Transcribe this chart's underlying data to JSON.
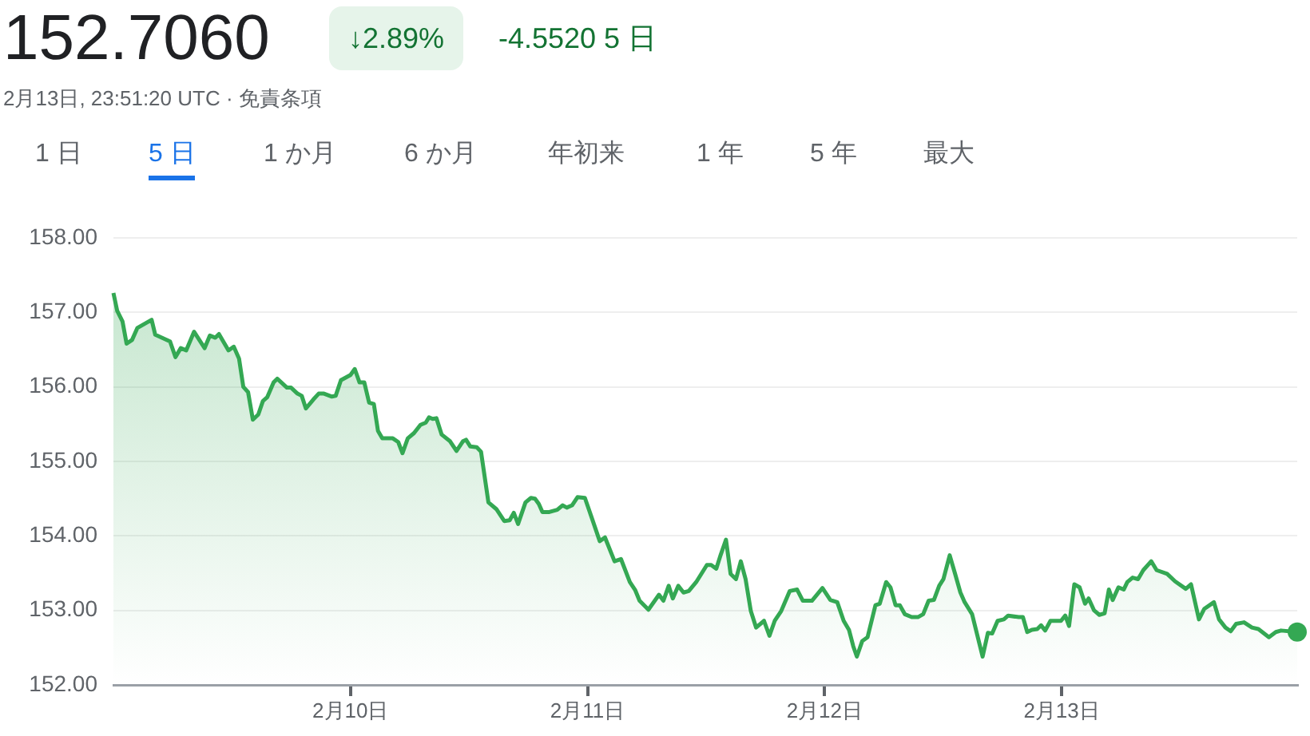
{
  "chart_data": {
    "type": "area",
    "title": "152.7060",
    "subtitle": "2月13日, 23:51:20 UTC · 免責条項",
    "annotations": [
      "↓2.89%",
      "-4.5520 5 日",
      "1 日",
      "5 日",
      "1 か月",
      "6 か月",
      "年初来",
      "1 年",
      "5 年",
      "最大"
    ],
    "series": [
      {
        "color": "#34a853",
        "x": [
          "--02-09T00:00",
          "--02-09T00:23",
          "--02-09T00:55",
          "--02-09T01:20",
          "--02-09T01:53",
          "--02-09T02:25",
          "--02-09T03:52",
          "--02-09T04:14",
          "--02-09T05:44",
          "--02-09T06:17",
          "--02-09T06:49",
          "--02-09T07:22",
          "--02-09T08:10",
          "--02-09T09:14",
          "--02-09T09:46",
          "--02-09T10:19",
          "--02-09T10:41",
          "--02-09T11:39",
          "--02-09T12:11",
          "--02-09T12:43",
          "--02-09T13:09",
          "--02-09T13:38",
          "--02-09T14:07",
          "--02-09T14:40",
          "--02-09T15:08",
          "--02-09T15:34",
          "--02-09T16:13",
          "--02-09T16:35",
          "--02-09T17:34",
          "--02-09T17:59",
          "--02-09T18:38",
          "--02-09T19:04",
          "--02-09T19:29",
          "--02-09T20:14",
          "--02-09T20:47",
          "--02-09T21:19",
          "--02-09T22:07",
          "--02-09T22:30",
          "--02-09T23:02",
          "--02-10T00:00",
          "--02-10T00:26",
          "--02-10T00:55",
          "--02-10T01:24",
          "--02-10T01:53",
          "--02-10T02:22",
          "--02-10T02:47",
          "--02-10T03:13",
          "--02-10T04:17",
          "--02-10T04:50",
          "--02-10T05:16",
          "--02-10T05:48",
          "--02-10T06:26",
          "--02-10T07:05",
          "--02-10T07:37",
          "--02-10T07:57",
          "--02-10T08:19",
          "--02-10T08:42",
          "--02-10T09:14",
          "--02-10T10:05",
          "--02-10T10:44",
          "--02-10T11:23",
          "--02-10T11:42",
          "--02-10T12:08",
          "--02-10T12:47",
          "--02-10T13:13",
          "--02-10T13:58",
          "--02-10T14:46",
          "--02-10T15:34",
          "--02-10T16:07",
          "--02-10T16:32",
          "--02-10T16:58",
          "--02-10T17:43",
          "--02-10T18:16",
          "--02-10T18:41",
          "--02-10T19:04",
          "--02-10T19:26",
          "--02-10T20:08",
          "--02-10T20:56",
          "--02-10T21:28",
          "--02-10T21:54",
          "--02-10T22:26",
          "--02-10T22:59",
          "--02-10T23:44",
          "--02-11T00:26",
          "--02-11T01:14",
          "--02-11T01:46",
          "--02-11T02:44",
          "--02-11T03:23",
          "--02-11T04:17",
          "--02-11T04:50",
          "--02-11T05:16",
          "--02-11T06:10",
          "--02-11T07:14",
          "--02-11T07:41",
          "--02-11T08:13",
          "--02-11T08:38",
          "--02-11T09:11",
          "--02-11T09:43",
          "--02-11T10:15",
          "--02-11T11:00",
          "--02-11T12:05",
          "--02-11T12:31",
          "--02-11T13:02",
          "--02-11T13:28",
          "--02-11T14:01",
          "--02-11T14:29",
          "--02-11T15:02",
          "--02-11T15:31",
          "--02-11T16:00",
          "--02-11T16:32",
          "--02-11T17:04",
          "--02-11T17:52",
          "--02-11T18:25",
          "--02-11T18:57",
          "--02-11T19:36",
          "--02-11T20:28",
          "--02-11T21:13",
          "--02-11T21:48",
          "--02-11T22:43",
          "--02-11T23:47",
          "--02-12T00:35",
          "--02-12T01:17",
          "--02-12T01:56",
          "--02-12T02:28",
          "--02-12T02:54",
          "--02-12T03:16",
          "--02-12T03:49",
          "--02-12T04:21",
          "--02-12T05:09",
          "--02-12T05:35",
          "--02-12T06:14",
          "--02-12T06:40",
          "--02-12T07:11",
          "--02-12T07:37",
          "--02-12T08:07",
          "--02-12T08:49",
          "--02-12T09:27",
          "--02-12T09:59",
          "--02-12T10:32",
          "--02-12T11:04",
          "--02-12T11:36",
          "--02-12T12:02",
          "--02-12T12:40",
          "--02-12T13:13",
          "--02-12T13:45",
          "--02-12T14:11",
          "--02-12T14:56",
          "--02-12T16:00",
          "--02-12T16:32",
          "--02-12T16:58",
          "--02-12T17:31",
          "--02-12T18:09",
          "--02-12T18:35",
          "--02-12T19:39",
          "--02-12T20:05",
          "--02-12T20:31",
          "--02-12T20:59",
          "--02-12T21:32",
          "--02-12T21:55",
          "--02-12T22:20",
          "--02-12T22:52",
          "--02-12T23:56",
          "--02-13T00:22",
          "--02-13T00:45",
          "--02-13T01:17",
          "--02-13T01:49",
          "--02-13T02:22",
          "--02-13T02:44",
          "--02-13T03:17",
          "--02-13T03:49",
          "--02-13T04:21",
          "--02-13T04:47",
          "--02-13T05:10",
          "--02-13T05:45",
          "--02-13T06:17",
          "--02-13T06:39",
          "--02-13T07:11",
          "--02-13T07:44",
          "--02-13T08:16",
          "--02-13T09:04",
          "--02-13T09:37",
          "--02-13T10:41",
          "--02-13T11:29",
          "--02-13T12:34",
          "--02-13T13:06",
          "--02-13T13:54",
          "--02-13T14:26",
          "--02-13T15:25",
          "--02-13T15:56",
          "--02-13T16:35",
          "--02-13T17:07",
          "--02-13T17:40",
          "--02-13T18:28",
          "--02-13T19:16",
          "--02-13T19:55",
          "--02-13T20:59",
          "--02-13T21:41",
          "--02-13T22:13",
          "--02-13T23:51"
        ],
        "values": [
          157.26,
          157.02,
          156.88,
          156.58,
          156.63,
          156.79,
          156.9,
          156.7,
          156.61,
          156.4,
          156.52,
          156.49,
          156.74,
          156.52,
          156.69,
          156.66,
          156.71,
          156.49,
          156.54,
          156.38,
          156,
          155.93,
          155.56,
          155.63,
          155.81,
          155.86,
          156.06,
          156.11,
          155.99,
          155.99,
          155.91,
          155.88,
          155.71,
          155.83,
          155.91,
          155.91,
          155.87,
          155.88,
          156.09,
          156.16,
          156.24,
          156.06,
          156.06,
          155.79,
          155.77,
          155.41,
          155.31,
          155.31,
          155.26,
          155.11,
          155.31,
          155.38,
          155.49,
          155.52,
          155.59,
          155.57,
          155.58,
          155.36,
          155.27,
          155.14,
          155.27,
          155.29,
          155.2,
          155.19,
          155.13,
          154.45,
          154.36,
          154.2,
          154.21,
          154.31,
          154.16,
          154.45,
          154.51,
          154.5,
          154.43,
          154.32,
          154.32,
          154.35,
          154.41,
          154.38,
          154.41,
          154.52,
          154.51,
          154.24,
          153.93,
          153.98,
          153.66,
          153.69,
          153.38,
          153.27,
          153.13,
          153.01,
          153.21,
          153.13,
          153.33,
          153.16,
          153.33,
          153.24,
          153.26,
          153.38,
          153.61,
          153.61,
          153.56,
          153.74,
          153.95,
          153.49,
          153.42,
          153.66,
          153.42,
          152.99,
          152.77,
          152.86,
          152.66,
          152.86,
          152.99,
          153.26,
          153.28,
          153.13,
          153.13,
          153.3,
          153.14,
          153.11,
          152.86,
          152.74,
          152.52,
          152.38,
          152.59,
          152.64,
          153.07,
          153.09,
          153.38,
          153.31,
          153.07,
          153.07,
          152.95,
          152.91,
          152.91,
          152.95,
          153.13,
          153.14,
          153.33,
          153.42,
          153.74,
          153.49,
          153.24,
          153.11,
          152.95,
          152.38,
          152.7,
          152.69,
          152.86,
          152.88,
          152.93,
          152.91,
          152.91,
          152.71,
          152.74,
          152.75,
          152.8,
          152.73,
          152.86,
          152.86,
          152.93,
          152.79,
          153.35,
          153.31,
          153.09,
          153.16,
          153,
          152.94,
          152.96,
          153.28,
          153.14,
          153.31,
          153.28,
          153.38,
          153.44,
          153.42,
          153.54,
          153.66,
          153.54,
          153.49,
          153.39,
          153.29,
          153.35,
          152.88,
          153.02,
          153.11,
          152.88,
          152.77,
          152.72,
          152.82,
          152.84,
          152.77,
          152.75,
          152.64,
          152.71,
          152.73,
          152.71
        ]
      }
    ],
    "xlim": [
      "--02-09",
      "--02-13T23:51"
    ],
    "xticks": [
      {
        "value": "--02-10",
        "label": "2月10日"
      },
      {
        "value": "--02-11",
        "label": "2月11日"
      },
      {
        "value": "--02-12",
        "label": "2月12日"
      },
      {
        "value": "--02-13",
        "label": "2月13日"
      }
    ],
    "ylim": [
      152,
      158
    ],
    "yticks": [
      {
        "value": 152,
        "label": "152.00"
      },
      {
        "value": 153,
        "label": "153.00"
      },
      {
        "value": 154,
        "label": "154.00"
      },
      {
        "value": 155,
        "label": "155.00"
      },
      {
        "value": 156,
        "label": "156.00"
      },
      {
        "value": 157,
        "label": "157.00"
      },
      {
        "value": 158,
        "label": "158.00"
      }
    ],
    "grid": "y",
    "legend": false,
    "marker": "none",
    "line_style": "solid"
  }
}
